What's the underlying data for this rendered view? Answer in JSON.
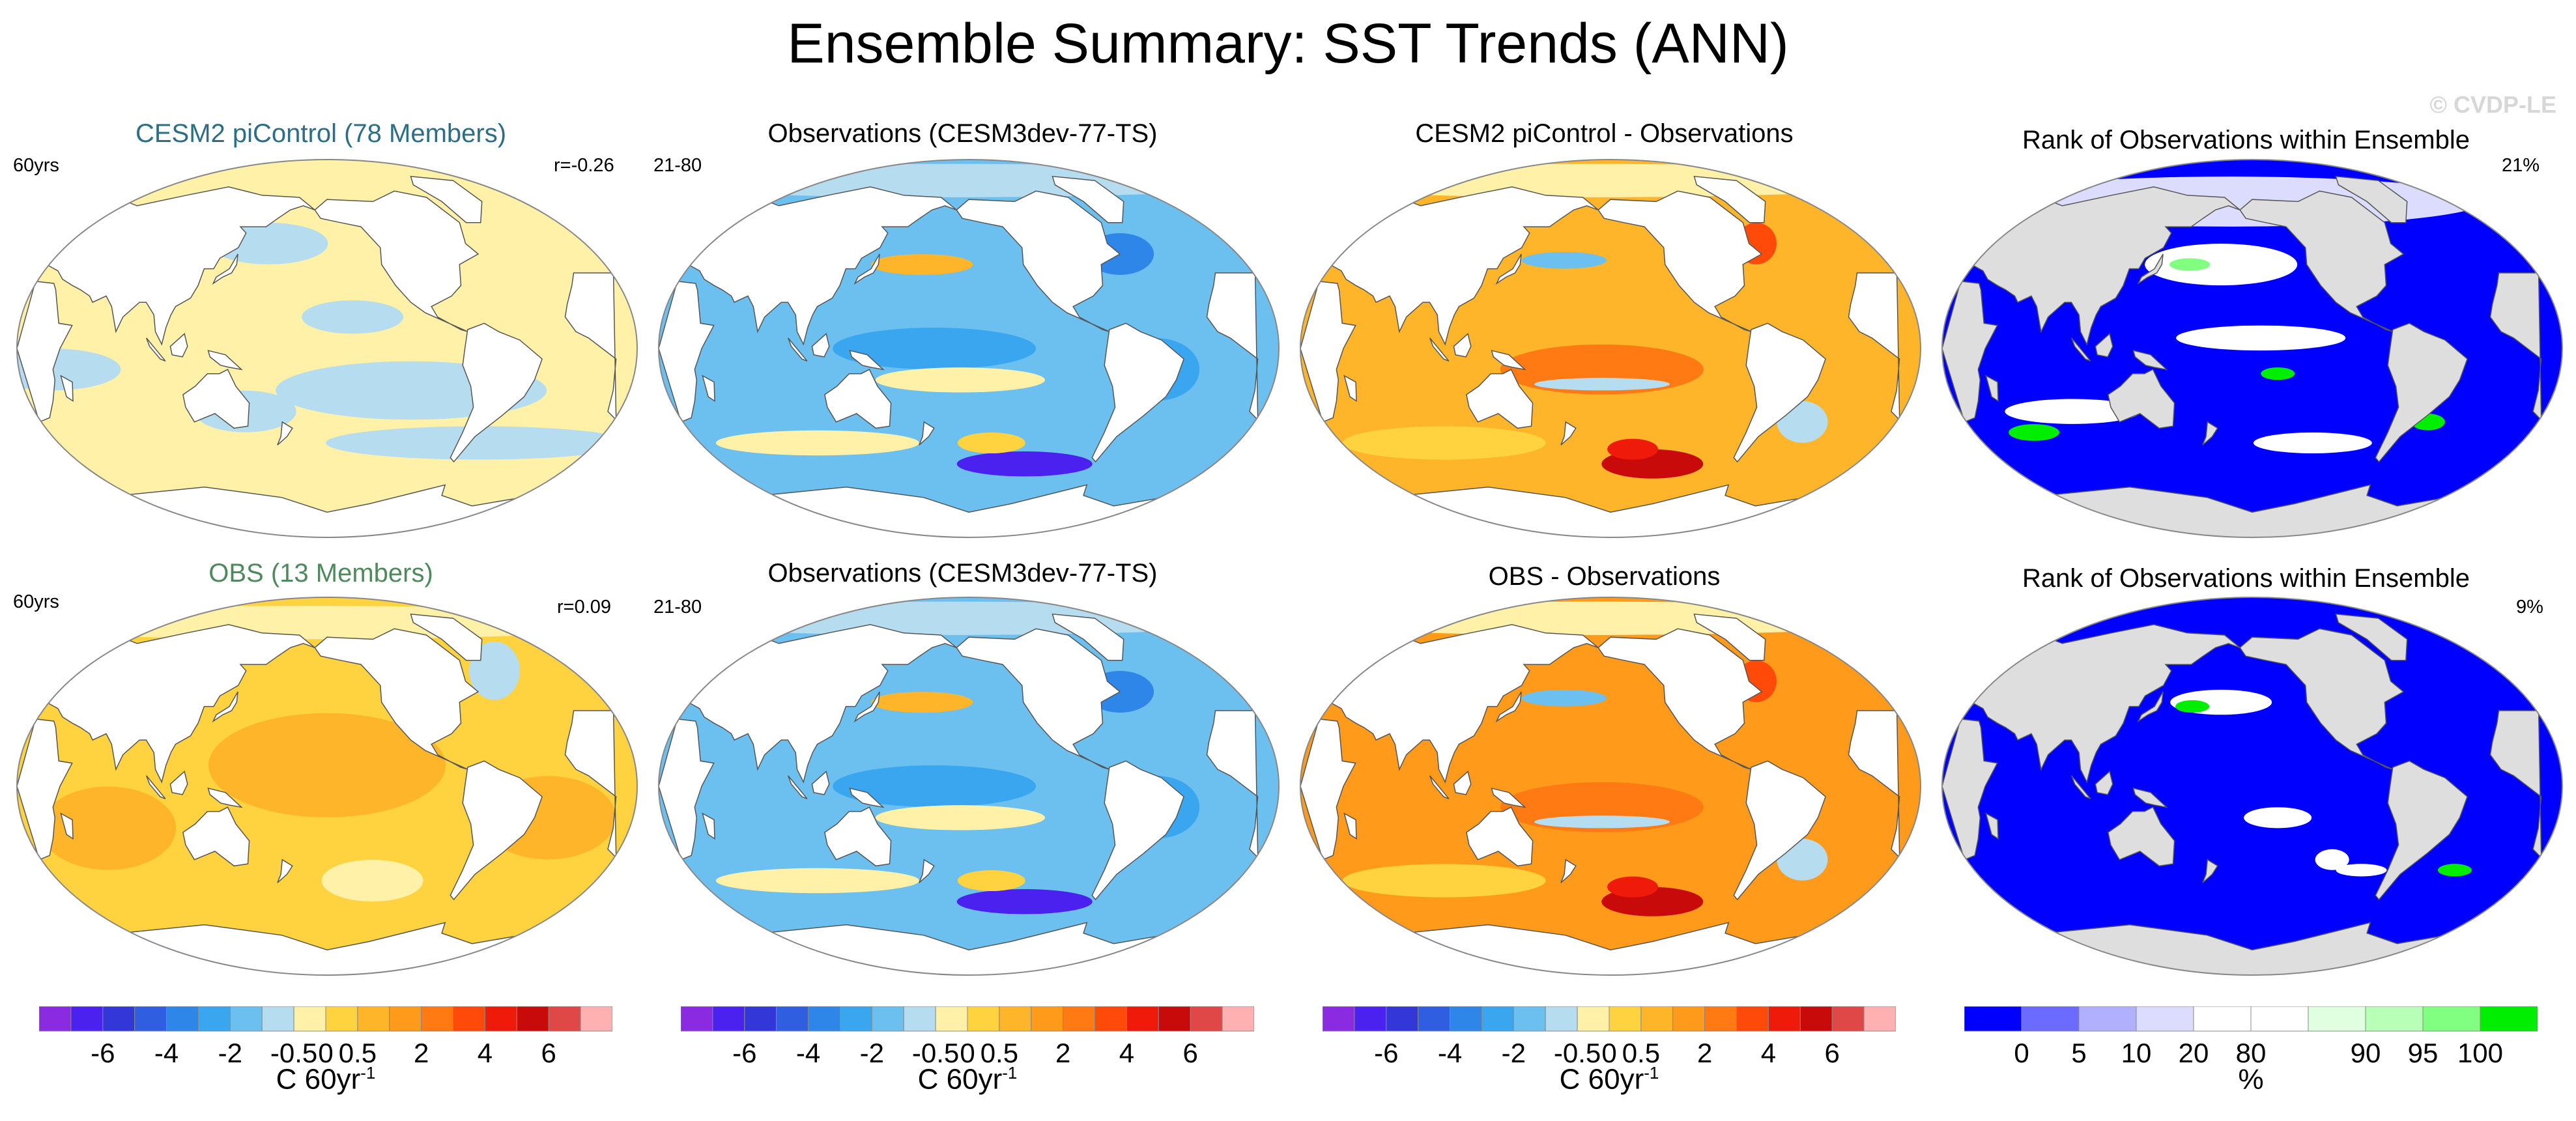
{
  "title": "Ensemble Summary: SST Trends (ANN)",
  "watermark": "© CVDP-LE",
  "rows": [
    {
      "panels": [
        {
          "title": "CESM2 piControl (78 Members)",
          "title_color": "#2b6e86",
          "left_label": "60yrs",
          "right_label": "r=-0.26",
          "field": "model"
        },
        {
          "title": "Observations (CESM3dev-77-TS)",
          "title_color": "#000000",
          "left_label": "21-80",
          "right_label": "",
          "field": "obs"
        },
        {
          "title": "CESM2 piControl - Observations",
          "title_color": "#000000",
          "left_label": "",
          "right_label": "",
          "field": "diff"
        },
        {
          "title": "Rank of Observations within Ensemble",
          "title_color": "#000000",
          "left_label": "",
          "right_label": "21%",
          "field": "rank"
        }
      ]
    },
    {
      "panels": [
        {
          "title": "OBS (13 Members)",
          "title_color": "#4f8a5c",
          "left_label": "60yrs",
          "right_label": "r=0.09",
          "field": "model2"
        },
        {
          "title": "Observations (CESM3dev-77-TS)",
          "title_color": "#000000",
          "left_label": "21-80",
          "right_label": "",
          "field": "obs"
        },
        {
          "title": "OBS - Observations",
          "title_color": "#000000",
          "left_label": "",
          "right_label": "",
          "field": "diff2"
        },
        {
          "title": "Rank of Observations within Ensemble",
          "title_color": "#000000",
          "left_label": "",
          "right_label": "9%",
          "field": "rank2"
        }
      ]
    }
  ],
  "colorbars": [
    {
      "type": "trend",
      "colors": [
        "#8a2be2",
        "#4b21f0",
        "#3437d8",
        "#2f5fe0",
        "#2e86e8",
        "#3aa6f0",
        "#6cc0f0",
        "#b6dcf0",
        "#fff2a8",
        "#ffd23f",
        "#ffb52a",
        "#ff9a1a",
        "#ff7a12",
        "#ff4a0a",
        "#ef1a0a",
        "#c80a0a",
        "#e04848",
        "#ffb0b0"
      ],
      "ticks": [
        "-6",
        "-4",
        "-2",
        "-0.5",
        "0",
        "0.5",
        "2",
        "4",
        "6"
      ],
      "unit": "C 60yr",
      "unit_exp": "-1"
    },
    {
      "type": "trend",
      "colors": [
        "#8a2be2",
        "#4b21f0",
        "#3437d8",
        "#2f5fe0",
        "#2e86e8",
        "#3aa6f0",
        "#6cc0f0",
        "#b6dcf0",
        "#fff2a8",
        "#ffd23f",
        "#ffb52a",
        "#ff9a1a",
        "#ff7a12",
        "#ff4a0a",
        "#ef1a0a",
        "#c80a0a",
        "#e04848",
        "#ffb0b0"
      ],
      "ticks": [
        "-6",
        "-4",
        "-2",
        "-0.5",
        "0",
        "0.5",
        "2",
        "4",
        "6"
      ],
      "unit": "C 60yr",
      "unit_exp": "-1"
    },
    {
      "type": "trend",
      "colors": [
        "#8a2be2",
        "#4b21f0",
        "#3437d8",
        "#2f5fe0",
        "#2e86e8",
        "#3aa6f0",
        "#6cc0f0",
        "#b6dcf0",
        "#fff2a8",
        "#ffd23f",
        "#ffb52a",
        "#ff9a1a",
        "#ff7a12",
        "#ff4a0a",
        "#ef1a0a",
        "#c80a0a",
        "#e04848",
        "#ffb0b0"
      ],
      "ticks": [
        "-6",
        "-4",
        "-2",
        "-0.5",
        "0",
        "0.5",
        "2",
        "4",
        "6"
      ],
      "unit": "C 60yr",
      "unit_exp": "-1"
    },
    {
      "type": "rank",
      "colors": [
        "#0000ff",
        "#6b6bff",
        "#b0b0ff",
        "#dcdcff",
        "#ffffff",
        "#ffffff",
        "#e0ffe0",
        "#b8ffb8",
        "#80ff80",
        "#00ee00"
      ],
      "ticks": [
        "0",
        "5",
        "10",
        "20",
        "80",
        "90",
        "95",
        "100"
      ],
      "unit": "%",
      "unit_exp": ""
    }
  ],
  "colors": {
    "land": "#ffffff",
    "rank_land": "#dedede",
    "coast": "#555555"
  }
}
